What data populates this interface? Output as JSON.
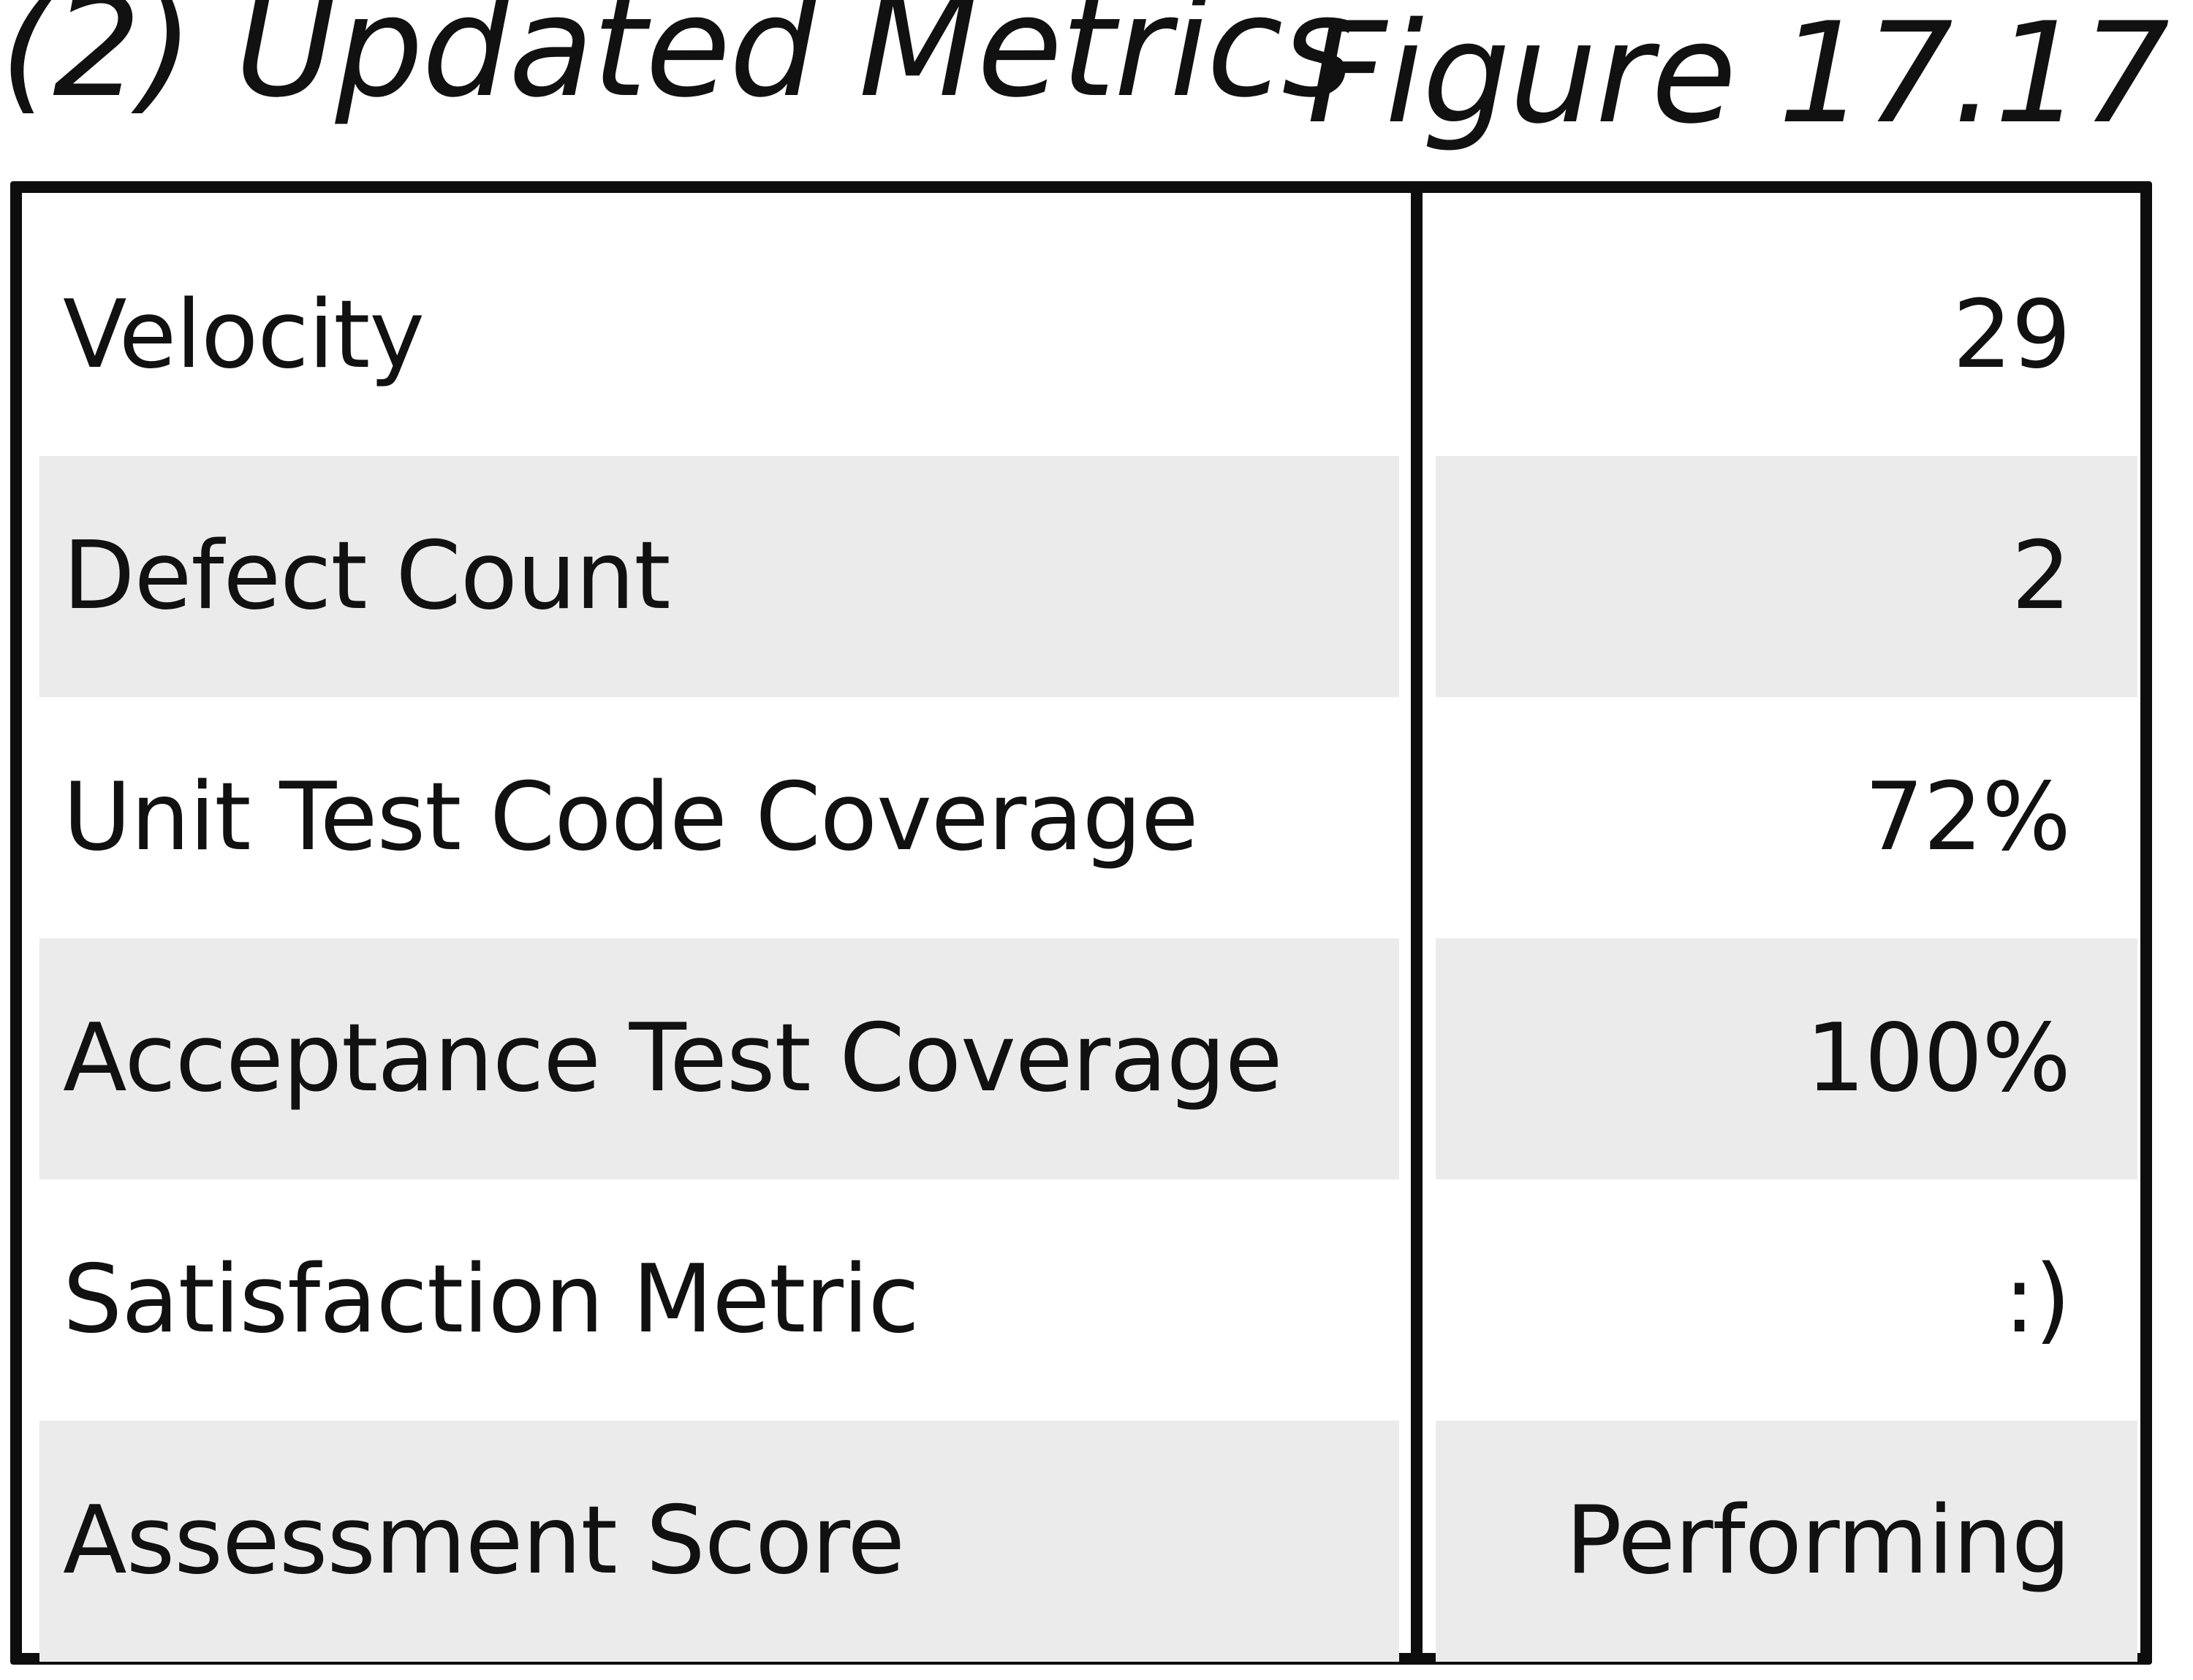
{
  "header": {
    "title": "(2) Updated Metrics",
    "figure_label": "Figure 17.17"
  },
  "metrics": [
    {
      "label": "Velocity",
      "value": "29",
      "shaded": false
    },
    {
      "label": "Defect Count",
      "value": "2",
      "shaded": true
    },
    {
      "label": "Unit Test Code Coverage",
      "value": "72%",
      "shaded": false
    },
    {
      "label": "Acceptance Test Coverage",
      "value": "100%",
      "shaded": true
    },
    {
      "label": "Satisfaction Metric",
      "value": ":)",
      "shaded": false
    },
    {
      "label": "Assessment Score",
      "value": "Performing",
      "shaded": true
    }
  ],
  "colors": {
    "border": "#0d0d0d",
    "row_shade": "#ebebeb",
    "background": "#ffffff",
    "text": "#111111"
  }
}
